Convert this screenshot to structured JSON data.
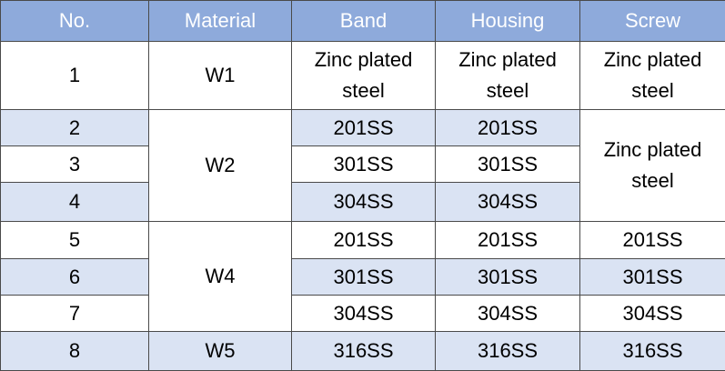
{
  "table": {
    "header": [
      "No.",
      "Material",
      "Band",
      "Housing",
      "Screw"
    ],
    "rows": [
      [
        "1",
        "W1",
        "Zinc plated steel",
        "Zinc plated steel",
        "Zinc plated steel"
      ],
      [
        "2",
        "W2",
        "201SS",
        "201SS",
        "Zinc plated steel"
      ],
      [
        "3",
        "301SS",
        "301SS"
      ],
      [
        "4",
        "304SS",
        "304SS"
      ],
      [
        "5",
        "W4",
        "201SS",
        "201SS",
        "201SS"
      ],
      [
        "6",
        "301SS",
        "301SS",
        "301SS"
      ],
      [
        "7",
        "304SS",
        "304SS",
        "304SS"
      ],
      [
        "8",
        "W5",
        "316SS",
        "316SS",
        "316SS"
      ]
    ]
  }
}
